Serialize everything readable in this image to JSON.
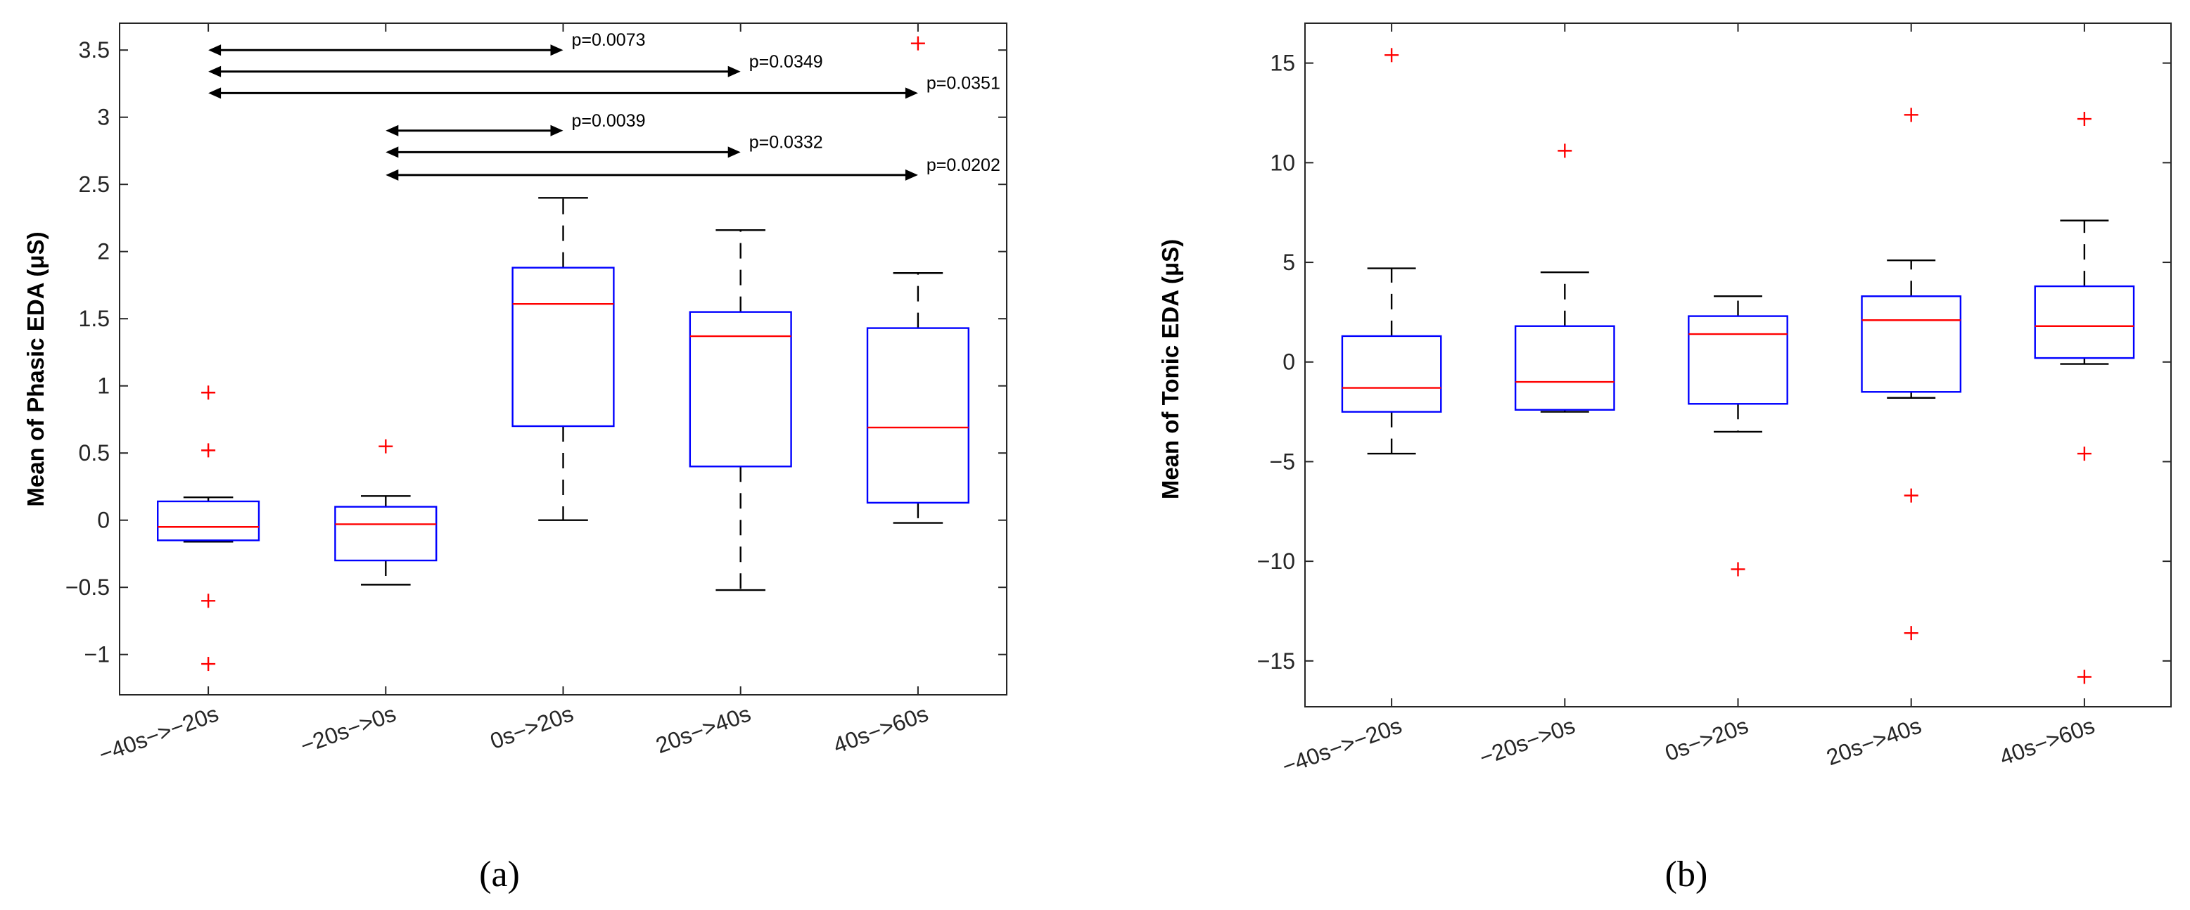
{
  "chart_data": [
    {
      "type": "box",
      "panel_caption": "(a)",
      "title": "",
      "xlabel": "",
      "ylabel": "Mean of Phasic EDA (μS)",
      "ylim": [
        -1.3,
        3.7
      ],
      "yticks": [
        -1,
        -0.5,
        0,
        0.5,
        1,
        1.5,
        2,
        2.5,
        3,
        3.5
      ],
      "ytick_labels": [
        "−1",
        "−0.5",
        "0",
        "0.5",
        "1",
        "1.5",
        "2",
        "2.5",
        "3",
        "3.5"
      ],
      "categories": [
        "−40s−>−20s",
        "−20s−>0s",
        "0s−>20s",
        "20s−>40s",
        "40s−>60s"
      ],
      "boxes": [
        {
          "q1": -0.15,
          "median": -0.05,
          "q3": 0.14,
          "whisker_low": -0.16,
          "whisker_high": 0.17,
          "outliers": [
            0.95,
            0.52,
            -0.6,
            -1.07
          ]
        },
        {
          "q1": -0.3,
          "median": -0.03,
          "q3": 0.1,
          "whisker_low": -0.48,
          "whisker_high": 0.18,
          "outliers": [
            0.55
          ]
        },
        {
          "q1": 0.7,
          "median": 1.61,
          "q3": 1.88,
          "whisker_low": 0.0,
          "whisker_high": 2.4,
          "outliers": []
        },
        {
          "q1": 0.4,
          "median": 1.37,
          "q3": 1.55,
          "whisker_low": -0.52,
          "whisker_high": 2.16,
          "outliers": []
        },
        {
          "q1": 0.13,
          "median": 0.69,
          "q3": 1.43,
          "whisker_low": -0.02,
          "whisker_high": 1.84,
          "outliers": [
            3.55
          ]
        }
      ],
      "annotations": [
        {
          "from_category": 0,
          "to_category": 2,
          "y": 3.5,
          "label": "p=0.0073"
        },
        {
          "from_category": 0,
          "to_category": 3,
          "y": 3.34,
          "label": "p=0.0349"
        },
        {
          "from_category": 0,
          "to_category": 4,
          "y": 3.18,
          "label": "p=0.0351"
        },
        {
          "from_category": 1,
          "to_category": 2,
          "y": 2.9,
          "label": "p=0.0039"
        },
        {
          "from_category": 1,
          "to_category": 3,
          "y": 2.74,
          "label": "p=0.0332"
        },
        {
          "from_category": 1,
          "to_category": 4,
          "y": 2.57,
          "label": "p=0.0202"
        }
      ]
    },
    {
      "type": "box",
      "panel_caption": "(b)",
      "title": "",
      "xlabel": "",
      "ylabel": "Mean of Tonic EDA (μS)",
      "ylim": [
        -17.3,
        17
      ],
      "yticks": [
        -15,
        -10,
        -5,
        0,
        5,
        10,
        15
      ],
      "ytick_labels": [
        "−15",
        "−10",
        "−5",
        "0",
        "5",
        "10",
        "15"
      ],
      "categories": [
        "−40s−>−20s",
        "−20s−>0s",
        "0s−>20s",
        "20s−>40s",
        "40s−>60s"
      ],
      "boxes": [
        {
          "q1": -2.5,
          "median": -1.3,
          "q3": 1.3,
          "whisker_low": -4.6,
          "whisker_high": 4.7,
          "outliers": [
            15.4
          ]
        },
        {
          "q1": -2.4,
          "median": -1.0,
          "q3": 1.8,
          "whisker_low": -2.5,
          "whisker_high": 4.5,
          "outliers": [
            10.6
          ]
        },
        {
          "q1": -2.1,
          "median": 1.4,
          "q3": 2.3,
          "whisker_low": -3.5,
          "whisker_high": 3.3,
          "outliers": [
            -10.4
          ]
        },
        {
          "q1": -1.5,
          "median": 2.1,
          "q3": 3.3,
          "whisker_low": -1.8,
          "whisker_high": 5.1,
          "outliers": [
            12.4,
            -6.7,
            -13.6
          ]
        },
        {
          "q1": 0.2,
          "median": 1.8,
          "q3": 3.8,
          "whisker_low": -0.1,
          "whisker_high": 7.1,
          "outliers": [
            12.2,
            -4.6,
            -15.8
          ]
        }
      ],
      "annotations": []
    }
  ]
}
